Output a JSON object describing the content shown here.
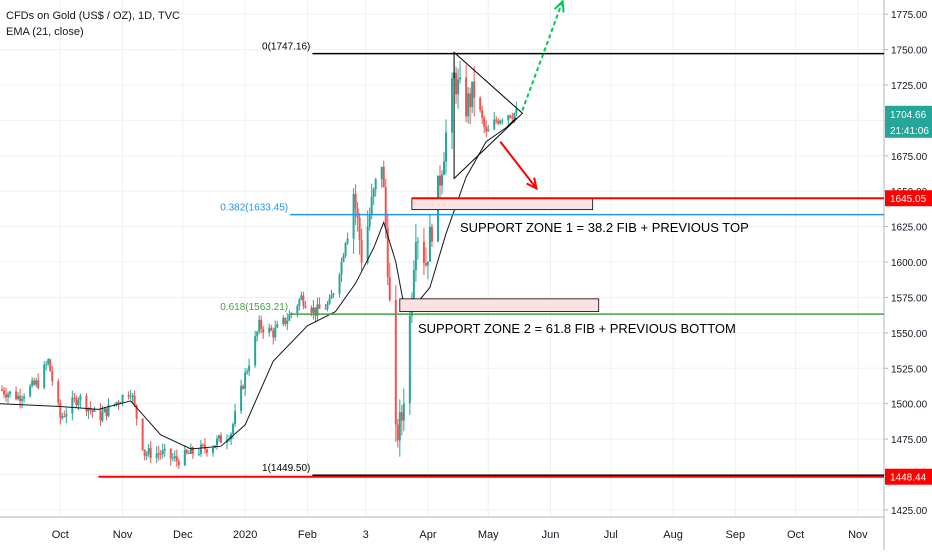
{
  "header": {
    "title": "CFDs on Gold (US$ / OZ), 1D, TVC",
    "indicator": "EMA (21, close)"
  },
  "colors": {
    "up": "#26a69a",
    "down": "#ef5350",
    "ema": "#131722",
    "black_line": "#000000",
    "blue_line": "#2196f3",
    "green_line": "#43a047",
    "red_line": "#ff0000",
    "zone_fill": "#fde2e2",
    "price_tag": "#26a69a",
    "red_tag": "#ff0000",
    "arrow_up": "#00c853",
    "arrow_down": "#ff0000",
    "grid": "#eef0f3",
    "axis_text": "#131722"
  },
  "chart_data": {
    "type": "candlestick",
    "y_axis": {
      "range": [
        1420,
        1785
      ],
      "ticks": [
        1425.0,
        1450.0,
        1475.0,
        1500.0,
        1525.0,
        1550.0,
        1575.0,
        1600.0,
        1625.0,
        1650.0,
        1675.0,
        1700.0,
        1725.0,
        1750.0,
        1775.0
      ],
      "tick_labels": [
        "1425.00",
        "1450.00",
        "1475.00",
        "1500.00",
        "1525.00",
        "1550.00",
        "1575.00",
        "1600.00",
        "1625.00",
        "1650.00",
        "1675.00",
        "1700.00",
        "1725.00",
        "1750.00",
        "1775.00"
      ]
    },
    "x_axis": {
      "start": "2019-09-01",
      "end": "2020-11-14",
      "ticks": [
        {
          "date": "2019-10-01",
          "label": "Oct"
        },
        {
          "date": "2019-11-01",
          "label": "Nov"
        },
        {
          "date": "2019-12-01",
          "label": "Dec"
        },
        {
          "date": "2020-01-01",
          "label": "2020"
        },
        {
          "date": "2020-02-01",
          "label": "Feb"
        },
        {
          "date": "2020-03-01",
          "label": "3"
        },
        {
          "date": "2020-04-01",
          "label": "Apr"
        },
        {
          "date": "2020-05-01",
          "label": "May"
        },
        {
          "date": "2020-06-01",
          "label": "Jun"
        },
        {
          "date": "2020-07-01",
          "label": "Jul"
        },
        {
          "date": "2020-08-01",
          "label": "Aug"
        },
        {
          "date": "2020-09-01",
          "label": "Sep"
        },
        {
          "date": "2020-10-01",
          "label": "Oct"
        },
        {
          "date": "2020-11-01",
          "label": "Nov"
        }
      ]
    },
    "price_path": [
      [
        "2019-09-01",
        1510
      ],
      [
        "2019-09-10",
        1505
      ],
      [
        "2019-09-20",
        1515
      ],
      [
        "2019-09-25",
        1530
      ],
      [
        "2019-10-01",
        1490
      ],
      [
        "2019-10-10",
        1505
      ],
      [
        "2019-10-20",
        1490
      ],
      [
        "2019-10-28",
        1500
      ],
      [
        "2019-11-05",
        1510
      ],
      [
        "2019-11-12",
        1465
      ],
      [
        "2019-11-20",
        1465
      ],
      [
        "2019-11-28",
        1460
      ],
      [
        "2019-12-05",
        1465
      ],
      [
        "2019-12-15",
        1470
      ],
      [
        "2019-12-25",
        1480
      ],
      [
        "2020-01-01",
        1520
      ],
      [
        "2020-01-08",
        1555
      ],
      [
        "2020-01-15",
        1550
      ],
      [
        "2020-01-22",
        1560
      ],
      [
        "2020-01-29",
        1575
      ],
      [
        "2020-02-05",
        1565
      ],
      [
        "2020-02-12",
        1570
      ],
      [
        "2020-02-18",
        1600
      ],
      [
        "2020-02-24",
        1650
      ],
      [
        "2020-02-28",
        1605
      ],
      [
        "2020-03-04",
        1640
      ],
      [
        "2020-03-09",
        1672
      ],
      [
        "2020-03-12",
        1600
      ],
      [
        "2020-03-16",
        1475
      ],
      [
        "2020-03-19",
        1490
      ],
      [
        "2020-03-23",
        1560
      ],
      [
        "2020-03-26",
        1625
      ],
      [
        "2020-03-31",
        1600
      ],
      [
        "2020-04-06",
        1650
      ],
      [
        "2020-04-10",
        1690
      ],
      [
        "2020-04-14",
        1730
      ],
      [
        "2020-04-20",
        1710
      ],
      [
        "2020-04-24",
        1720
      ],
      [
        "2020-04-30",
        1690
      ],
      [
        "2020-05-05",
        1700
      ],
      [
        "2020-05-10",
        1705
      ],
      [
        "2020-05-15",
        1705
      ]
    ],
    "ema_path": [
      [
        "2019-09-01",
        1500
      ],
      [
        "2019-10-01",
        1498
      ],
      [
        "2019-10-20",
        1496
      ],
      [
        "2019-11-05",
        1502
      ],
      [
        "2019-11-20",
        1478
      ],
      [
        "2019-12-05",
        1468
      ],
      [
        "2019-12-20",
        1470
      ],
      [
        "2020-01-01",
        1485
      ],
      [
        "2020-01-15",
        1530
      ],
      [
        "2020-02-01",
        1555
      ],
      [
        "2020-02-15",
        1565
      ],
      [
        "2020-02-25",
        1585
      ],
      [
        "2020-03-05",
        1610
      ],
      [
        "2020-03-10",
        1628
      ],
      [
        "2020-03-16",
        1600
      ],
      [
        "2020-03-20",
        1570
      ],
      [
        "2020-03-26",
        1570
      ],
      [
        "2020-04-02",
        1582
      ],
      [
        "2020-04-10",
        1620
      ],
      [
        "2020-04-20",
        1660
      ],
      [
        "2020-04-30",
        1685
      ],
      [
        "2020-05-10",
        1695
      ],
      [
        "2020-05-15",
        1702
      ]
    ],
    "horizontal_levels": [
      {
        "price": 1747.16,
        "label": "0(1747.16)",
        "color": "black_line"
      },
      {
        "price": 1633.45,
        "label": "0.382(1633.45)",
        "color": "blue_line"
      },
      {
        "price": 1563.21,
        "label": "0.618(1563.21)",
        "color": "green_line"
      },
      {
        "price": 1449.5,
        "label": "1(1449.50)",
        "color": "black_line"
      }
    ],
    "red_lines": [
      1645.05,
      1448.44
    ],
    "zones": [
      {
        "from": "2020-03-24",
        "to": "2020-06-22",
        "low": 1637,
        "high": 1645,
        "text": "SUPPORT ZONE 1 = 38.2 FIB + PREVIOUS TOP"
      },
      {
        "from": "2020-03-18",
        "to": "2020-06-25",
        "low": 1565,
        "high": 1574,
        "text": "SUPPORT ZONE 2 = 61.8 FIB + PREVIOUS BOTTOM"
      }
    ],
    "triangle": [
      [
        "2020-04-14",
        1748
      ],
      [
        "2020-05-18",
        1705
      ],
      [
        "2020-04-14",
        1659
      ]
    ],
    "arrows": {
      "up": [
        [
          "2020-05-18",
          1707
        ],
        [
          "2020-06-07",
          1784
        ]
      ],
      "down": [
        [
          "2020-05-07",
          1685
        ],
        [
          "2020-05-25",
          1652
        ]
      ]
    },
    "price_tags": [
      {
        "price": 1704.66,
        "label": "1704.66",
        "sub": "21:41:06",
        "color": "price_tag"
      },
      {
        "price": 1645.05,
        "label": "1645.05",
        "color": "red_tag"
      },
      {
        "price": 1448.44,
        "label": "1448.44",
        "color": "red_tag"
      }
    ],
    "y_cut_label": "1650.00"
  }
}
